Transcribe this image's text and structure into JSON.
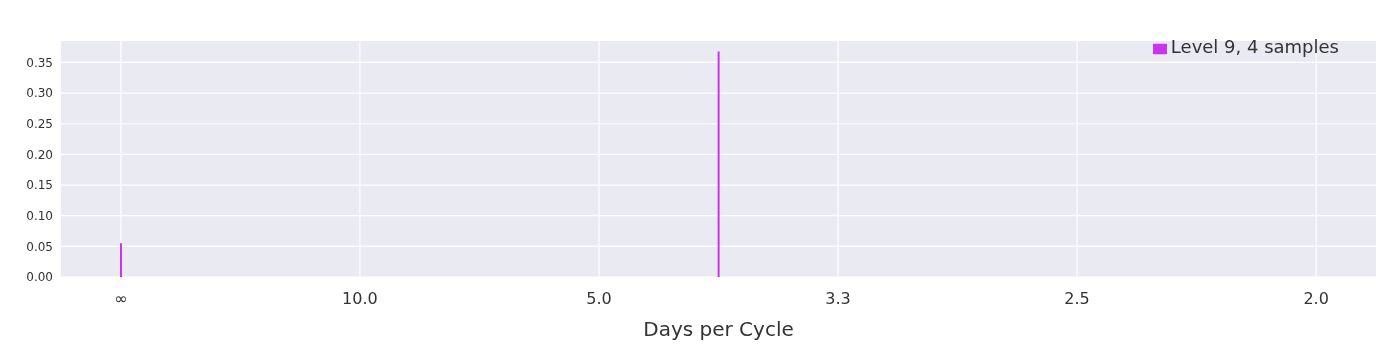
{
  "chart_data": {
    "type": "bar",
    "xlabel": "Days per Cycle",
    "categories": [
      "∞",
      null,
      null,
      null,
      "10.0",
      null,
      null,
      null,
      "5.0",
      null,
      null,
      null,
      "3.3",
      null,
      null,
      null,
      "2.5",
      null,
      null,
      null,
      "2.0"
    ],
    "series": [
      {
        "name": "Level 9, 4 samples",
        "color": "#cc33ee",
        "values": [
          0.055,
          null,
          null,
          null,
          null,
          null,
          null,
          null,
          null,
          null,
          0.368,
          null,
          null,
          null,
          null,
          null,
          null,
          null,
          null,
          null,
          null
        ]
      }
    ],
    "ylim": [
      0,
      0.385
    ],
    "yticks": [
      {
        "value": 0,
        "label": "0.00"
      },
      {
        "value": 0.05,
        "label": "0.05"
      },
      {
        "value": 0.1,
        "label": "0.10"
      },
      {
        "value": 0.15,
        "label": "0.15"
      },
      {
        "value": 0.2,
        "label": "0.20"
      },
      {
        "value": 0.25,
        "label": "0.25"
      },
      {
        "value": 0.3,
        "label": "0.30"
      },
      {
        "value": 0.35,
        "label": "0.35"
      }
    ],
    "grid": true,
    "legend": "top right"
  }
}
